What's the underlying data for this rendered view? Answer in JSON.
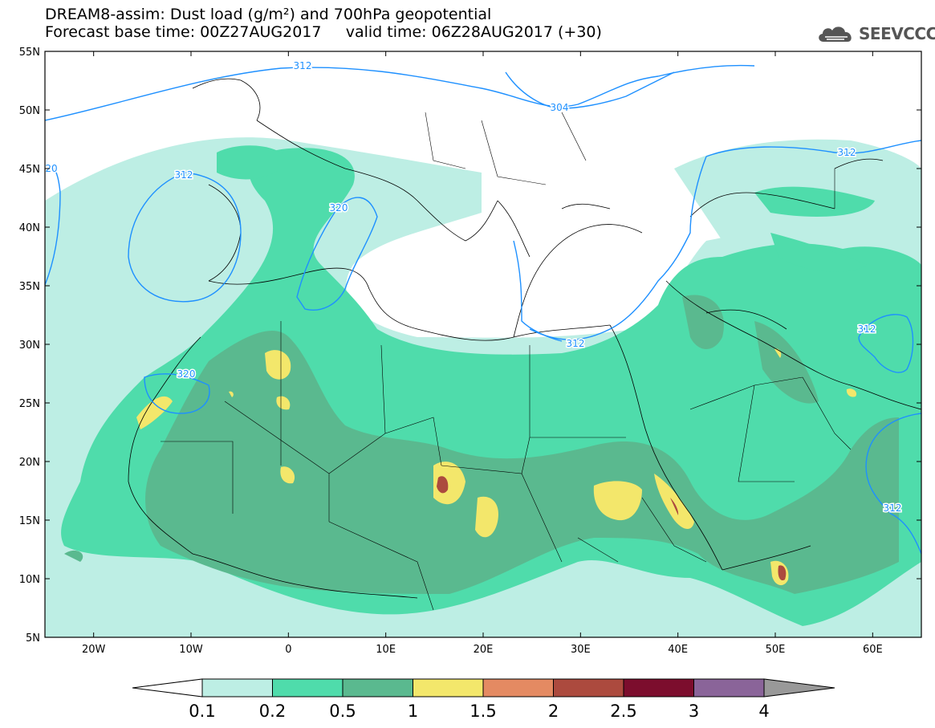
{
  "header": {
    "title_line1": "DREAM8-assim: Dust load (g/m²) and 700hPa geopotential",
    "base_label": "Forecast base time: 00Z27AUG2017",
    "valid_label": "valid time: 06Z28AUG2017 (+30)"
  },
  "logo": {
    "text": "SEEVCCC",
    "icon": "cloud-icon",
    "color": "#555555"
  },
  "map": {
    "lat_labels": [
      "55N",
      "50N",
      "45N",
      "40N",
      "35N",
      "30N",
      "25N",
      "20N",
      "15N",
      "10N",
      "5N"
    ],
    "lon_labels": [
      "20W",
      "10W",
      "0",
      "10E",
      "20E",
      "30E",
      "40E",
      "50E",
      "60E"
    ],
    "extent": {
      "lon_min": -25,
      "lon_max": 65,
      "lat_min": 5,
      "lat_max": 55
    },
    "contour_labels": [
      "312",
      "304",
      "312",
      "320",
      "312",
      "320",
      "312",
      "312",
      "312",
      "20"
    ]
  },
  "colorbar": {
    "tick_labels": [
      "0.1",
      "0.2",
      "0.5",
      "1",
      "1.5",
      "2",
      "2.5",
      "3",
      "4"
    ],
    "colors": [
      "#ffffff",
      "#bdeee4",
      "#4fdcab",
      "#5ab98f",
      "#f3e76b",
      "#e48a62",
      "#ac4a3e",
      "#7c0d2d",
      "#8a6499",
      "#999999"
    ]
  },
  "colors": {
    "c1": "#bdeee4",
    "c2": "#4fdcab",
    "c3": "#5ab98f",
    "c4": "#f3e76b",
    "c5": "#e48a62",
    "c6": "#ac4a3e",
    "contour": "#1e90ff"
  }
}
